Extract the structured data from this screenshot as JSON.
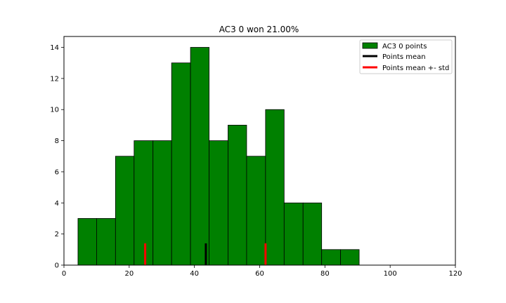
{
  "chart_data": {
    "type": "bar",
    "title": "AC3 0 won 21.00%",
    "xlabel": "",
    "ylabel": "",
    "xlim": [
      0,
      120
    ],
    "ylim": [
      0,
      14.7
    ],
    "xticks": [
      0,
      20,
      40,
      60,
      80,
      100,
      120
    ],
    "yticks": [
      0,
      2,
      4,
      6,
      8,
      10,
      12,
      14
    ],
    "grid": false,
    "legend_position": "top-right",
    "colors": {
      "bars": "#008000",
      "mean": "#000000",
      "std": "#ff0000"
    },
    "series": [
      {
        "name": "AC3 0 points",
        "bin_edges": [
          4.3,
          10.0,
          15.8,
          21.5,
          27.3,
          33.0,
          38.8,
          44.5,
          50.3,
          56.0,
          61.8,
          67.5,
          73.3,
          79.0,
          84.8,
          90.5
        ],
        "values": [
          3,
          3,
          7,
          8,
          8,
          13,
          14,
          8,
          9,
          7,
          10,
          4,
          4,
          1,
          1
        ]
      },
      {
        "name": "Points mean",
        "x": 43.5,
        "height": 1.4
      },
      {
        "name": "Points mean +- std",
        "x": [
          24.9,
          61.8
        ],
        "height": 1.4
      }
    ]
  }
}
